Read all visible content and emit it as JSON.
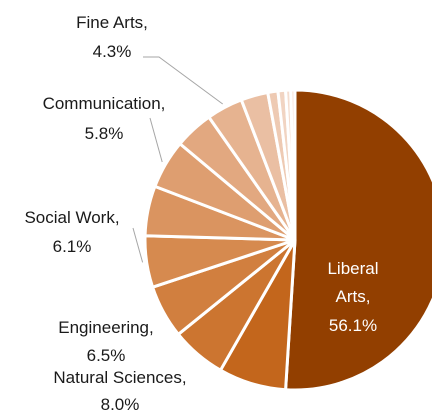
{
  "chart_data": {
    "type": "pie",
    "title": "",
    "slices": [
      {
        "label": "Liberal Arts",
        "label_line1": "Liberal",
        "label_line2": "Arts,",
        "value_text": "56.1%",
        "value": 56.1,
        "color": "#923f00"
      },
      {
        "label": "Natural Sciences",
        "label_line1": "Natural Sciences,",
        "value_text": "8.0%",
        "value": 8.0,
        "color": "#c3661c"
      },
      {
        "label": "Engineering",
        "label_line1": "Engineering,",
        "value_text": "6.5%",
        "value": 6.5,
        "color": "#cc7530"
      },
      {
        "label": "",
        "value": 6.3,
        "color": "#d17f3f"
      },
      {
        "label": "Social Work",
        "label_line1": "Social Work,",
        "value_text": "6.1%",
        "value": 6.1,
        "color": "#d68a4f"
      },
      {
        "label": "",
        "value": 5.9,
        "color": "#da9460"
      },
      {
        "label": "Communication",
        "label_line1": "Communication,",
        "value_text": "5.8%",
        "value": 5.8,
        "color": "#de9e70"
      },
      {
        "label": "",
        "value": 4.6,
        "color": "#e2a880"
      },
      {
        "label": "Fine Arts",
        "label_line1": "Fine Arts,",
        "value_text": "4.3%",
        "value": 4.3,
        "color": "#e6b390"
      },
      {
        "label": "",
        "value": 3.2,
        "color": "#eabfa3"
      },
      {
        "label": "",
        "value": 1.2,
        "color": "#eecab3"
      },
      {
        "label": "",
        "value": 0.9,
        "color": "#f1d4c2"
      },
      {
        "label": "",
        "value": 0.6,
        "color": "#f4ddcf"
      },
      {
        "label": "",
        "value": 0.5,
        "color": "#f7e6dc"
      }
    ],
    "legend": "none"
  }
}
